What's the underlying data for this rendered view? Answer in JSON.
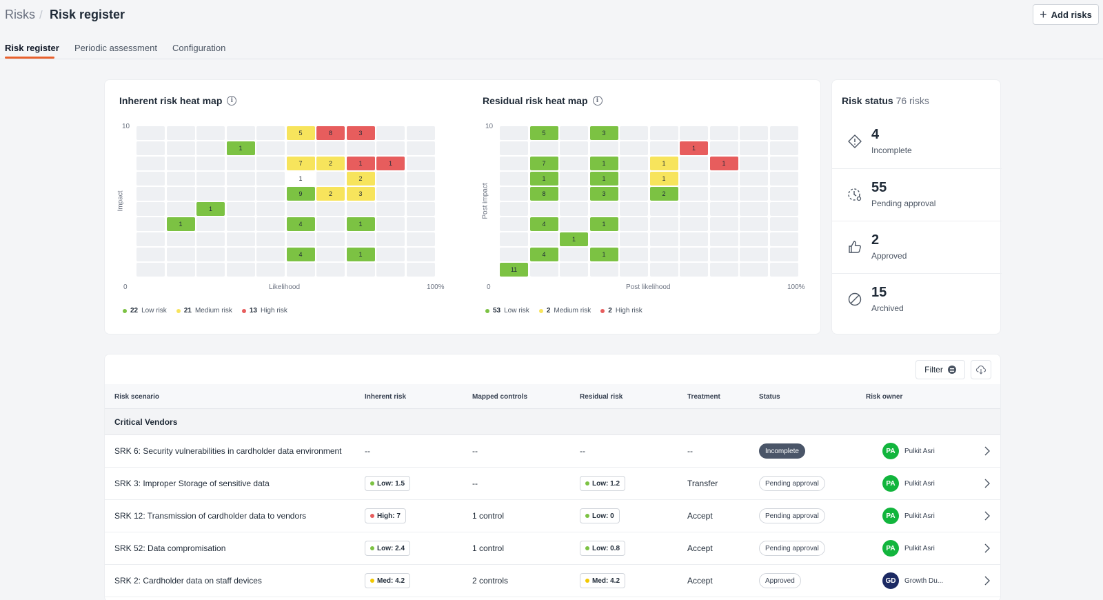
{
  "breadcrumb": {
    "root": "Risks",
    "separator": "/",
    "current": "Risk register"
  },
  "header": {
    "add_label": "Add risks"
  },
  "tabs": [
    {
      "label": "Risk register",
      "active": true
    },
    {
      "label": "Periodic assessment",
      "active": false
    },
    {
      "label": "Configuration",
      "active": false
    }
  ],
  "colors": {
    "accent": "#e8602c",
    "low": "#7cc243",
    "medium": "#f7e45c",
    "high": "#e75d5d",
    "avatar_green": "#12b53d",
    "avatar_navy": "#1c2a63"
  },
  "inherent": {
    "title": "Inherent risk heat map",
    "y_label": "Impact",
    "x_label": "Likelihood",
    "y_max": "10",
    "origin": "0",
    "x_max": "100%",
    "legend": [
      {
        "count": "22",
        "label": "Low risk",
        "color": "#7cc243"
      },
      {
        "count": "21",
        "label": "Medium risk",
        "color": "#f7e45c"
      },
      {
        "count": "13",
        "label": "High risk",
        "color": "#e75d5d"
      }
    ]
  },
  "residual": {
    "title": "Residual risk heat map",
    "y_label": "Post impact",
    "x_label": "Post likelihood",
    "y_max": "10",
    "origin": "0",
    "x_max": "100%",
    "legend": [
      {
        "count": "53",
        "label": "Low risk",
        "color": "#7cc243"
      },
      {
        "count": "2",
        "label": "Medium risk",
        "color": "#f7e45c"
      },
      {
        "count": "2",
        "label": "High risk",
        "color": "#e75d5d"
      }
    ]
  },
  "chart_data": [
    {
      "type": "heatmap",
      "title": "Inherent risk heat map",
      "xlabel": "Likelihood",
      "ylabel": "Impact",
      "xlim": [
        "0",
        "100%"
      ],
      "ylim": [
        0,
        10
      ],
      "rows": 10,
      "cols": 10,
      "cells": [
        {
          "row": 10,
          "col": 6,
          "value": "5",
          "level": "med"
        },
        {
          "row": 10,
          "col": 7,
          "value": "8",
          "level": "high"
        },
        {
          "row": 10,
          "col": 8,
          "value": "3",
          "level": "high"
        },
        {
          "row": 9,
          "col": 4,
          "value": "1",
          "level": "low"
        },
        {
          "row": 8,
          "col": 6,
          "value": "7",
          "level": "med"
        },
        {
          "row": 8,
          "col": 7,
          "value": "2",
          "level": "med"
        },
        {
          "row": 8,
          "col": 8,
          "value": "1",
          "level": "high"
        },
        {
          "row": 8,
          "col": 9,
          "value": "1",
          "level": "high"
        },
        {
          "row": 7,
          "col": 6,
          "value": "1",
          "level": "one"
        },
        {
          "row": 7,
          "col": 8,
          "value": "2",
          "level": "med"
        },
        {
          "row": 6,
          "col": 6,
          "value": "9",
          "level": "low"
        },
        {
          "row": 6,
          "col": 7,
          "value": "2",
          "level": "med"
        },
        {
          "row": 6,
          "col": 8,
          "value": "3",
          "level": "med"
        },
        {
          "row": 5,
          "col": 3,
          "value": "1",
          "level": "low"
        },
        {
          "row": 4,
          "col": 2,
          "value": "1",
          "level": "low"
        },
        {
          "row": 4,
          "col": 6,
          "value": "4",
          "level": "low"
        },
        {
          "row": 4,
          "col": 8,
          "value": "1",
          "level": "low"
        },
        {
          "row": 2,
          "col": 6,
          "value": "4",
          "level": "low"
        },
        {
          "row": 2,
          "col": 8,
          "value": "1",
          "level": "low"
        }
      ]
    },
    {
      "type": "heatmap",
      "title": "Residual risk heat map",
      "xlabel": "Post likelihood",
      "ylabel": "Post impact",
      "xlim": [
        "0",
        "100%"
      ],
      "ylim": [
        0,
        10
      ],
      "rows": 10,
      "cols": 10,
      "cells": [
        {
          "row": 10,
          "col": 2,
          "value": "5",
          "level": "low"
        },
        {
          "row": 10,
          "col": 4,
          "value": "3",
          "level": "low"
        },
        {
          "row": 9,
          "col": 7,
          "value": "1",
          "level": "high"
        },
        {
          "row": 8,
          "col": 2,
          "value": "7",
          "level": "low"
        },
        {
          "row": 8,
          "col": 4,
          "value": "1",
          "level": "low"
        },
        {
          "row": 8,
          "col": 6,
          "value": "1",
          "level": "med"
        },
        {
          "row": 8,
          "col": 8,
          "value": "1",
          "level": "high"
        },
        {
          "row": 7,
          "col": 2,
          "value": "1",
          "level": "low"
        },
        {
          "row": 7,
          "col": 4,
          "value": "1",
          "level": "low"
        },
        {
          "row": 7,
          "col": 6,
          "value": "1",
          "level": "med"
        },
        {
          "row": 6,
          "col": 2,
          "value": "8",
          "level": "low"
        },
        {
          "row": 6,
          "col": 4,
          "value": "3",
          "level": "low"
        },
        {
          "row": 6,
          "col": 6,
          "value": "2",
          "level": "low"
        },
        {
          "row": 4,
          "col": 2,
          "value": "4",
          "level": "low"
        },
        {
          "row": 4,
          "col": 4,
          "value": "1",
          "level": "low"
        },
        {
          "row": 3,
          "col": 3,
          "value": "1",
          "level": "low"
        },
        {
          "row": 2,
          "col": 2,
          "value": "4",
          "level": "low"
        },
        {
          "row": 2,
          "col": 4,
          "value": "1",
          "level": "low"
        },
        {
          "row": 1,
          "col": 1,
          "value": "11",
          "level": "low"
        }
      ]
    }
  ],
  "risk_status": {
    "title": "Risk status",
    "total": "76 risks",
    "items": [
      {
        "count": "4",
        "label": "Incomplete",
        "icon": "alert-diamond-icon"
      },
      {
        "count": "55",
        "label": "Pending approval",
        "icon": "pending-clock-icon"
      },
      {
        "count": "2",
        "label": "Approved",
        "icon": "thumbs-up-icon"
      },
      {
        "count": "15",
        "label": "Archived",
        "icon": "archived-slash-icon"
      }
    ]
  },
  "table": {
    "filter_label": "Filter",
    "columns": [
      "Risk scenario",
      "Inherent risk",
      "Mapped controls",
      "Residual risk",
      "Treatment",
      "Status",
      "Risk owner"
    ],
    "group": "Critical Vendors",
    "rows": [
      {
        "scenario": "SRK 6: Security vulnerabilities in cardholder data environment",
        "inherent": "--",
        "inherent_level": "",
        "controls": "--",
        "residual": "--",
        "residual_level": "",
        "treatment": "--",
        "status": "Incomplete",
        "status_dark": true,
        "owner_initials": "PA",
        "owner": "Pulkit Asri",
        "owner_color": "green"
      },
      {
        "scenario": "SRK 3: Improper Storage of sensitive data",
        "inherent": "Low: 1.5",
        "inherent_level": "low",
        "controls": "--",
        "residual": "Low: 1.2",
        "residual_level": "low",
        "treatment": "Transfer",
        "status": "Pending approval",
        "status_dark": false,
        "owner_initials": "PA",
        "owner": "Pulkit Asri",
        "owner_color": "green"
      },
      {
        "scenario": "SRK 12: Transmission of cardholder data to vendors",
        "inherent": "High: 7",
        "inherent_level": "high",
        "controls": "1 control",
        "residual": "Low: 0",
        "residual_level": "low",
        "treatment": "Accept",
        "status": "Pending approval",
        "status_dark": false,
        "owner_initials": "PA",
        "owner": "Pulkit Asri",
        "owner_color": "green"
      },
      {
        "scenario": "SRK 52: Data compromisation",
        "inherent": "Low: 2.4",
        "inherent_level": "low",
        "controls": "1 control",
        "residual": "Low: 0.8",
        "residual_level": "low",
        "treatment": "Accept",
        "status": "Pending approval",
        "status_dark": false,
        "owner_initials": "PA",
        "owner": "Pulkit Asri",
        "owner_color": "green"
      },
      {
        "scenario": "SRK 2: Cardholder data on staff devices",
        "inherent": "Med: 4.2",
        "inherent_level": "med",
        "controls": "2 controls",
        "residual": "Med: 4.2",
        "residual_level": "med",
        "treatment": "Accept",
        "status": "Approved",
        "status_dark": false,
        "owner_initials": "GD",
        "owner": "Growth Du...",
        "owner_color": "navy"
      }
    ]
  }
}
